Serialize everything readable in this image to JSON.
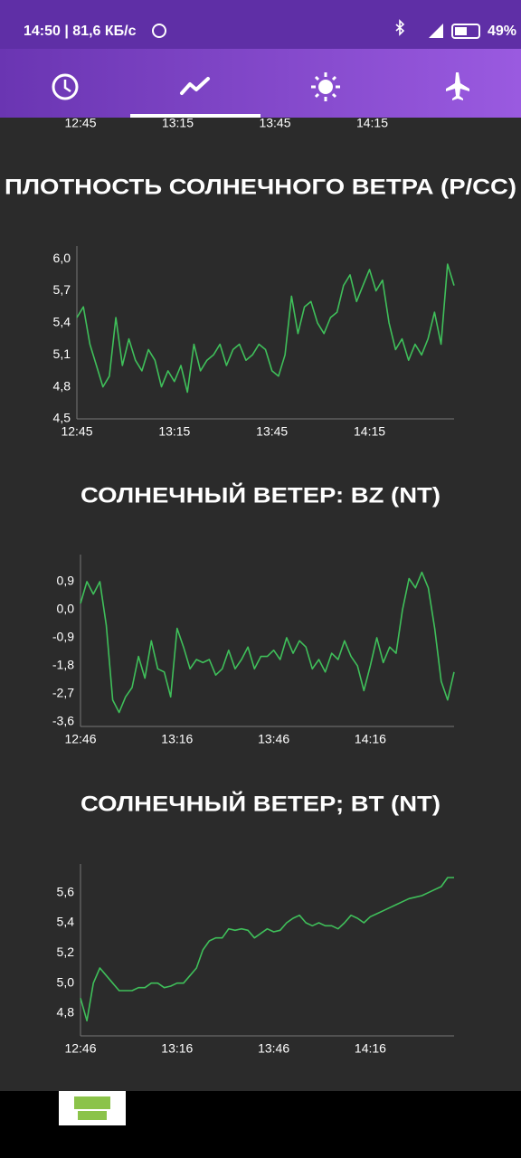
{
  "status_bar": {
    "time_speed": "14:50 | 81,6 КБ/с",
    "battery": "49%"
  },
  "partial_axis": {
    "labels": [
      "12:45",
      "13:15",
      "13:45",
      "14:15"
    ]
  },
  "chart_data": [
    {
      "type": "line",
      "title": "ПЛОТНОСТЬ СОЛНЕЧНОГО ВЕТРА (P/CC)",
      "color": "#3fbf5a",
      "values": [
        5.45,
        5.55,
        5.2,
        5.0,
        4.8,
        4.9,
        5.45,
        5.0,
        5.25,
        5.05,
        4.95,
        5.15,
        5.05,
        4.8,
        4.95,
        4.85,
        5.0,
        4.75,
        5.2,
        4.95,
        5.05,
        5.1,
        5.2,
        5.0,
        5.15,
        5.2,
        5.05,
        5.1,
        5.2,
        5.15,
        4.95,
        4.9,
        5.1,
        5.65,
        5.3,
        5.55,
        5.6,
        5.4,
        5.3,
        5.45,
        5.5,
        5.75,
        5.85,
        5.6,
        5.75,
        5.9,
        5.7,
        5.8,
        5.4,
        5.15,
        5.25,
        5.05,
        5.2,
        5.1,
        5.25,
        5.5,
        5.2,
        5.95,
        5.75
      ],
      "xlim": [
        0,
        58
      ],
      "xticks": [
        {
          "value": 0,
          "label": "12:45"
        },
        {
          "value": 15,
          "label": "13:15"
        },
        {
          "value": 30,
          "label": "13:45"
        },
        {
          "value": 45,
          "label": "14:15"
        }
      ],
      "ylim": [
        4.5,
        6.12
      ],
      "yticks": [
        {
          "value": 4.5,
          "label": "4,5"
        },
        {
          "value": 4.8,
          "label": "4,8"
        },
        {
          "value": 5.1,
          "label": "5,1"
        },
        {
          "value": 5.4,
          "label": "5,4"
        },
        {
          "value": 5.7,
          "label": "5,7"
        },
        {
          "value": 6.0,
          "label": "6,0"
        }
      ]
    },
    {
      "type": "line",
      "title": "СОЛНЕЧНЫЙ ВЕТЕР: BZ (NT)",
      "color": "#3fbf5a",
      "values": [
        0.2,
        0.9,
        0.5,
        0.9,
        -0.5,
        -2.9,
        -3.3,
        -2.8,
        -2.5,
        -1.5,
        -2.2,
        -1.0,
        -1.9,
        -2.0,
        -2.8,
        -0.6,
        -1.2,
        -1.9,
        -1.6,
        -1.7,
        -1.6,
        -2.1,
        -1.9,
        -1.3,
        -1.9,
        -1.6,
        -1.2,
        -1.9,
        -1.5,
        -1.5,
        -1.3,
        -1.6,
        -0.9,
        -1.4,
        -1.0,
        -1.2,
        -1.9,
        -1.6,
        -2.0,
        -1.4,
        -1.6,
        -1.0,
        -1.5,
        -1.8,
        -2.6,
        -1.8,
        -0.9,
        -1.7,
        -1.2,
        -1.4,
        0.0,
        1.0,
        0.7,
        1.2,
        0.7,
        -0.6,
        -2.3,
        -2.9,
        -2.0
      ],
      "xlim": [
        0,
        58
      ],
      "xticks": [
        {
          "value": 0,
          "label": "12:46"
        },
        {
          "value": 15,
          "label": "13:16"
        },
        {
          "value": 30,
          "label": "13:46"
        },
        {
          "value": 45,
          "label": "14:16"
        }
      ],
      "ylim": [
        -3.75,
        1.77
      ],
      "yticks": [
        {
          "value": -3.6,
          "label": "-3,6"
        },
        {
          "value": -2.7,
          "label": "-2,7"
        },
        {
          "value": -1.8,
          "label": "-1,8"
        },
        {
          "value": -0.9,
          "label": "-0,9"
        },
        {
          "value": 0.0,
          "label": "0,0"
        },
        {
          "value": 0.9,
          "label": "0,9"
        }
      ]
    },
    {
      "type": "line",
      "title": "СОЛНЕЧНЫЙ ВЕТЕР; BT (NT)",
      "color": "#3fbf5a",
      "values": [
        4.9,
        4.75,
        5.0,
        5.1,
        5.05,
        5.0,
        4.95,
        4.95,
        4.95,
        4.97,
        4.97,
        5.0,
        5.0,
        4.97,
        4.98,
        5.0,
        5.0,
        5.05,
        5.1,
        5.22,
        5.28,
        5.3,
        5.3,
        5.36,
        5.35,
        5.36,
        5.35,
        5.3,
        5.33,
        5.36,
        5.34,
        5.35,
        5.4,
        5.43,
        5.45,
        5.4,
        5.38,
        5.4,
        5.38,
        5.38,
        5.36,
        5.4,
        5.45,
        5.43,
        5.4,
        5.44,
        5.46,
        5.48,
        5.5,
        5.52,
        5.54,
        5.56,
        5.57,
        5.58,
        5.6,
        5.62,
        5.64,
        5.7,
        5.7
      ],
      "xlim": [
        0,
        58
      ],
      "xticks": [
        {
          "value": 0,
          "label": "12:46"
        },
        {
          "value": 15,
          "label": "13:16"
        },
        {
          "value": 30,
          "label": "13:46"
        },
        {
          "value": 45,
          "label": "14:16"
        }
      ],
      "ylim": [
        4.65,
        5.79
      ],
      "yticks": [
        {
          "value": 4.8,
          "label": "4,8"
        },
        {
          "value": 5.0,
          "label": "5,0"
        },
        {
          "value": 5.2,
          "label": "5,2"
        },
        {
          "value": 5.4,
          "label": "5,4"
        },
        {
          "value": 5.6,
          "label": "5,6"
        }
      ]
    }
  ]
}
